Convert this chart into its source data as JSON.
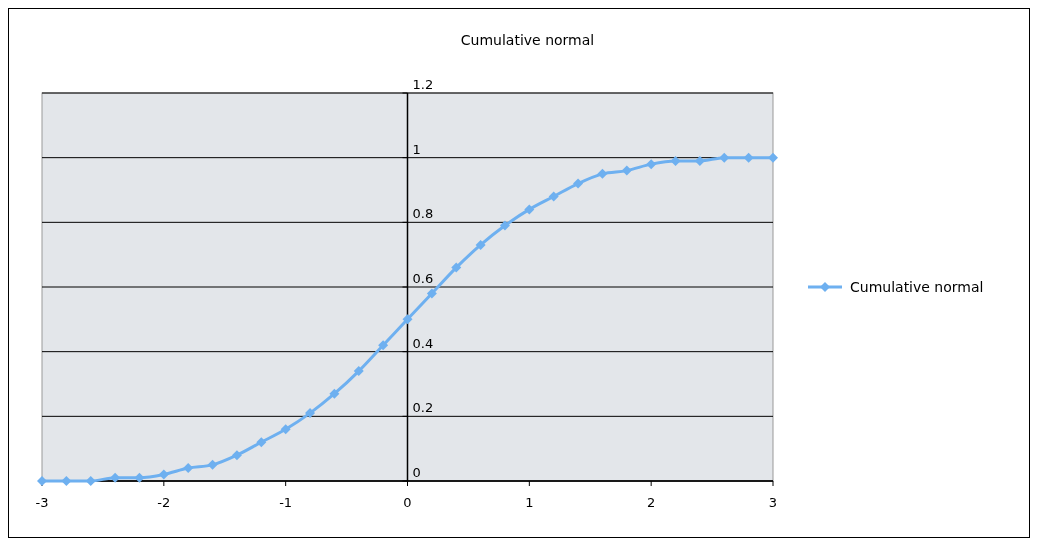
{
  "chart_data": {
    "type": "line",
    "title": "Cumulative normal",
    "x": [
      -3,
      -2.8,
      -2.6,
      -2.4,
      -2.2,
      -2,
      -1.8,
      -1.6,
      -1.4,
      -1.2,
      -1,
      -0.8,
      -0.6,
      -0.4,
      -0.2,
      0,
      0.2,
      0.4,
      0.6,
      0.8,
      1,
      1.2,
      1.4,
      1.6,
      1.8,
      2,
      2.2,
      2.4,
      2.6,
      2.8,
      3
    ],
    "series": [
      {
        "name": "Cumulative normal",
        "color": "#6eb0f0",
        "values": [
          0.0,
          0.0,
          0.0,
          0.01,
          0.01,
          0.02,
          0.04,
          0.05,
          0.08,
          0.12,
          0.16,
          0.21,
          0.27,
          0.34,
          0.42,
          0.5,
          0.58,
          0.66,
          0.73,
          0.79,
          0.84,
          0.88,
          0.92,
          0.95,
          0.96,
          0.98,
          0.99,
          0.99,
          1.0,
          1.0,
          1.0
        ]
      }
    ],
    "xlim": [
      -3,
      3
    ],
    "xticks": [
      -3,
      -2,
      -1,
      0,
      1,
      2,
      3
    ],
    "ylim": [
      0,
      1.2
    ],
    "yticks": [
      0,
      0.2,
      0.4,
      0.6,
      0.8,
      1,
      1.2
    ],
    "grid": "y",
    "legend": "right",
    "marker": "diamond",
    "line_style": "solid"
  }
}
